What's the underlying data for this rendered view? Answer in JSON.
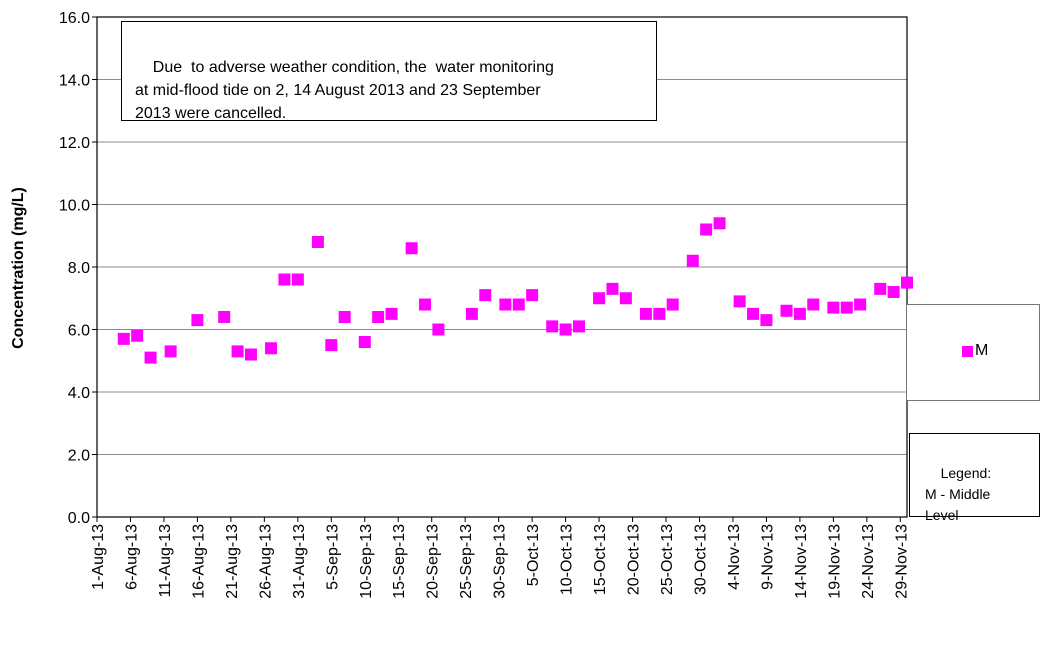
{
  "chart_data": {
    "type": "scatter",
    "ylabel": "Concentration (mg/L)",
    "xlabel": "",
    "ylim": [
      0,
      16
    ],
    "y_ticks": [
      "0.0",
      "2.0",
      "4.0",
      "6.0",
      "8.0",
      "10.0",
      "12.0",
      "14.0",
      "16.0"
    ],
    "grid": true,
    "x_range": [
      "1-Aug-13",
      "30-Nov-13"
    ],
    "x_ticks": [
      "1-Aug-13",
      "6-Aug-13",
      "11-Aug-13",
      "16-Aug-13",
      "21-Aug-13",
      "26-Aug-13",
      "31-Aug-13",
      "5-Sep-13",
      "10-Sep-13",
      "15-Sep-13",
      "20-Sep-13",
      "25-Sep-13",
      "30-Sep-13",
      "5-Oct-13",
      "10-Oct-13",
      "15-Oct-13",
      "20-Oct-13",
      "25-Oct-13",
      "30-Oct-13",
      "4-Nov-13",
      "9-Nov-13",
      "14-Nov-13",
      "19-Nov-13",
      "24-Nov-13",
      "29-Nov-13"
    ],
    "series": [
      {
        "name": "M",
        "color": "#ff00ff",
        "marker": "square",
        "points": [
          {
            "x": "5-Aug-13",
            "y": 5.7
          },
          {
            "x": "7-Aug-13",
            "y": 5.8
          },
          {
            "x": "9-Aug-13",
            "y": 5.1
          },
          {
            "x": "12-Aug-13",
            "y": 5.3
          },
          {
            "x": "16-Aug-13",
            "y": 6.3
          },
          {
            "x": "20-Aug-13",
            "y": 6.4
          },
          {
            "x": "22-Aug-13",
            "y": 5.3
          },
          {
            "x": "24-Aug-13",
            "y": 5.2
          },
          {
            "x": "27-Aug-13",
            "y": 5.4
          },
          {
            "x": "29-Aug-13",
            "y": 7.6
          },
          {
            "x": "31-Aug-13",
            "y": 7.6
          },
          {
            "x": "3-Sep-13",
            "y": 8.8
          },
          {
            "x": "5-Sep-13",
            "y": 5.5
          },
          {
            "x": "7-Sep-13",
            "y": 6.4
          },
          {
            "x": "10-Sep-13",
            "y": 5.6
          },
          {
            "x": "12-Sep-13",
            "y": 6.4
          },
          {
            "x": "14-Sep-13",
            "y": 6.5
          },
          {
            "x": "17-Sep-13",
            "y": 8.6
          },
          {
            "x": "19-Sep-13",
            "y": 6.8
          },
          {
            "x": "21-Sep-13",
            "y": 6.0
          },
          {
            "x": "26-Sep-13",
            "y": 6.5
          },
          {
            "x": "28-Sep-13",
            "y": 7.1
          },
          {
            "x": "1-Oct-13",
            "y": 6.8
          },
          {
            "x": "3-Oct-13",
            "y": 6.8
          },
          {
            "x": "5-Oct-13",
            "y": 7.1
          },
          {
            "x": "8-Oct-13",
            "y": 6.1
          },
          {
            "x": "10-Oct-13",
            "y": 6.0
          },
          {
            "x": "12-Oct-13",
            "y": 6.1
          },
          {
            "x": "15-Oct-13",
            "y": 7.0
          },
          {
            "x": "17-Oct-13",
            "y": 7.3
          },
          {
            "x": "19-Oct-13",
            "y": 7.0
          },
          {
            "x": "22-Oct-13",
            "y": 6.5
          },
          {
            "x": "24-Oct-13",
            "y": 6.5
          },
          {
            "x": "26-Oct-13",
            "y": 6.8
          },
          {
            "x": "29-Oct-13",
            "y": 8.2
          },
          {
            "x": "31-Oct-13",
            "y": 9.2
          },
          {
            "x": "2-Nov-13",
            "y": 9.4
          },
          {
            "x": "5-Nov-13",
            "y": 6.9
          },
          {
            "x": "7-Nov-13",
            "y": 6.5
          },
          {
            "x": "9-Nov-13",
            "y": 6.3
          },
          {
            "x": "12-Nov-13",
            "y": 6.6
          },
          {
            "x": "14-Nov-13",
            "y": 6.5
          },
          {
            "x": "16-Nov-13",
            "y": 6.8
          },
          {
            "x": "19-Nov-13",
            "y": 6.7
          },
          {
            "x": "21-Nov-13",
            "y": 6.7
          },
          {
            "x": "23-Nov-13",
            "y": 6.8
          },
          {
            "x": "26-Nov-13",
            "y": 7.3
          },
          {
            "x": "28-Nov-13",
            "y": 7.2
          },
          {
            "x": "30-Nov-13",
            "y": 7.5
          }
        ]
      }
    ],
    "legend": {
      "placement": "right",
      "entries": [
        "M"
      ]
    }
  },
  "annotation": {
    "text": "Due  to adverse weather condition, the  water monitoring\nat mid-flood tide on 2, 14 August 2013 and 23 September\n2013 were cancelled."
  },
  "legend_note": {
    "text": "Legend:\nM - Middle\nLevel"
  }
}
